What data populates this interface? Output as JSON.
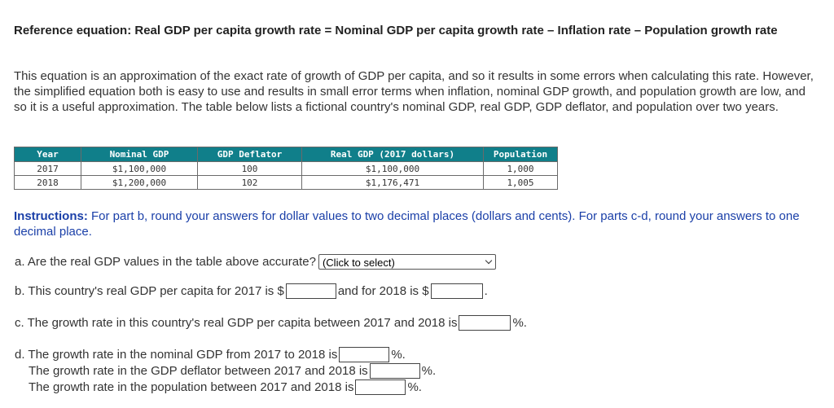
{
  "reference_equation": "Reference equation: Real GDP per capita growth rate = Nominal GDP per capita growth rate – Inflation rate – Population growth rate",
  "intro": "This equation is an approximation of the exact rate of growth of GDP per capita, and so it results in some errors when calculating this rate. However, the simplified equation both is easy to use and results in small error terms when inflation, nominal GDP growth, and population growth are low, and so it is a useful approximation. The table below lists a fictional country's nominal GDP, real GDP, GDP deflator, and population over two years.",
  "table": {
    "headers": [
      "Year",
      "Nominal GDP",
      "GDP Deflator",
      "Real GDP (2017 dollars)",
      "Population"
    ],
    "rows": [
      [
        "2017",
        "$1,100,000",
        "100",
        "$1,100,000",
        "1,000"
      ],
      [
        "2018",
        "$1,200,000",
        "102",
        "$1,176,471",
        "1,005"
      ]
    ]
  },
  "instructions": {
    "label": "Instructions:",
    "text": " For part b, round your answers for dollar values to two decimal places (dollars and cents). For parts c-d, round your answers to one decimal place."
  },
  "questions": {
    "a": {
      "text": "a. Are the real GDP values in the table above accurate?",
      "select_value": "(Click to select)"
    },
    "b": {
      "text1": "b. This country's real GDP per capita for 2017 is $",
      "text2": "and for 2018 is $",
      "text3": "."
    },
    "c": {
      "text": "c. The growth rate in this country's real GDP per capita between 2017 and 2018 is",
      "unit": "%."
    },
    "d": {
      "line1": "d. The growth rate in the nominal GDP from 2017 to 2018 is",
      "line2": "The growth rate in the GDP deflator between 2017 and 2018 is",
      "line3": "The growth rate in the population between 2017 and 2018 is",
      "unit": "%."
    }
  }
}
